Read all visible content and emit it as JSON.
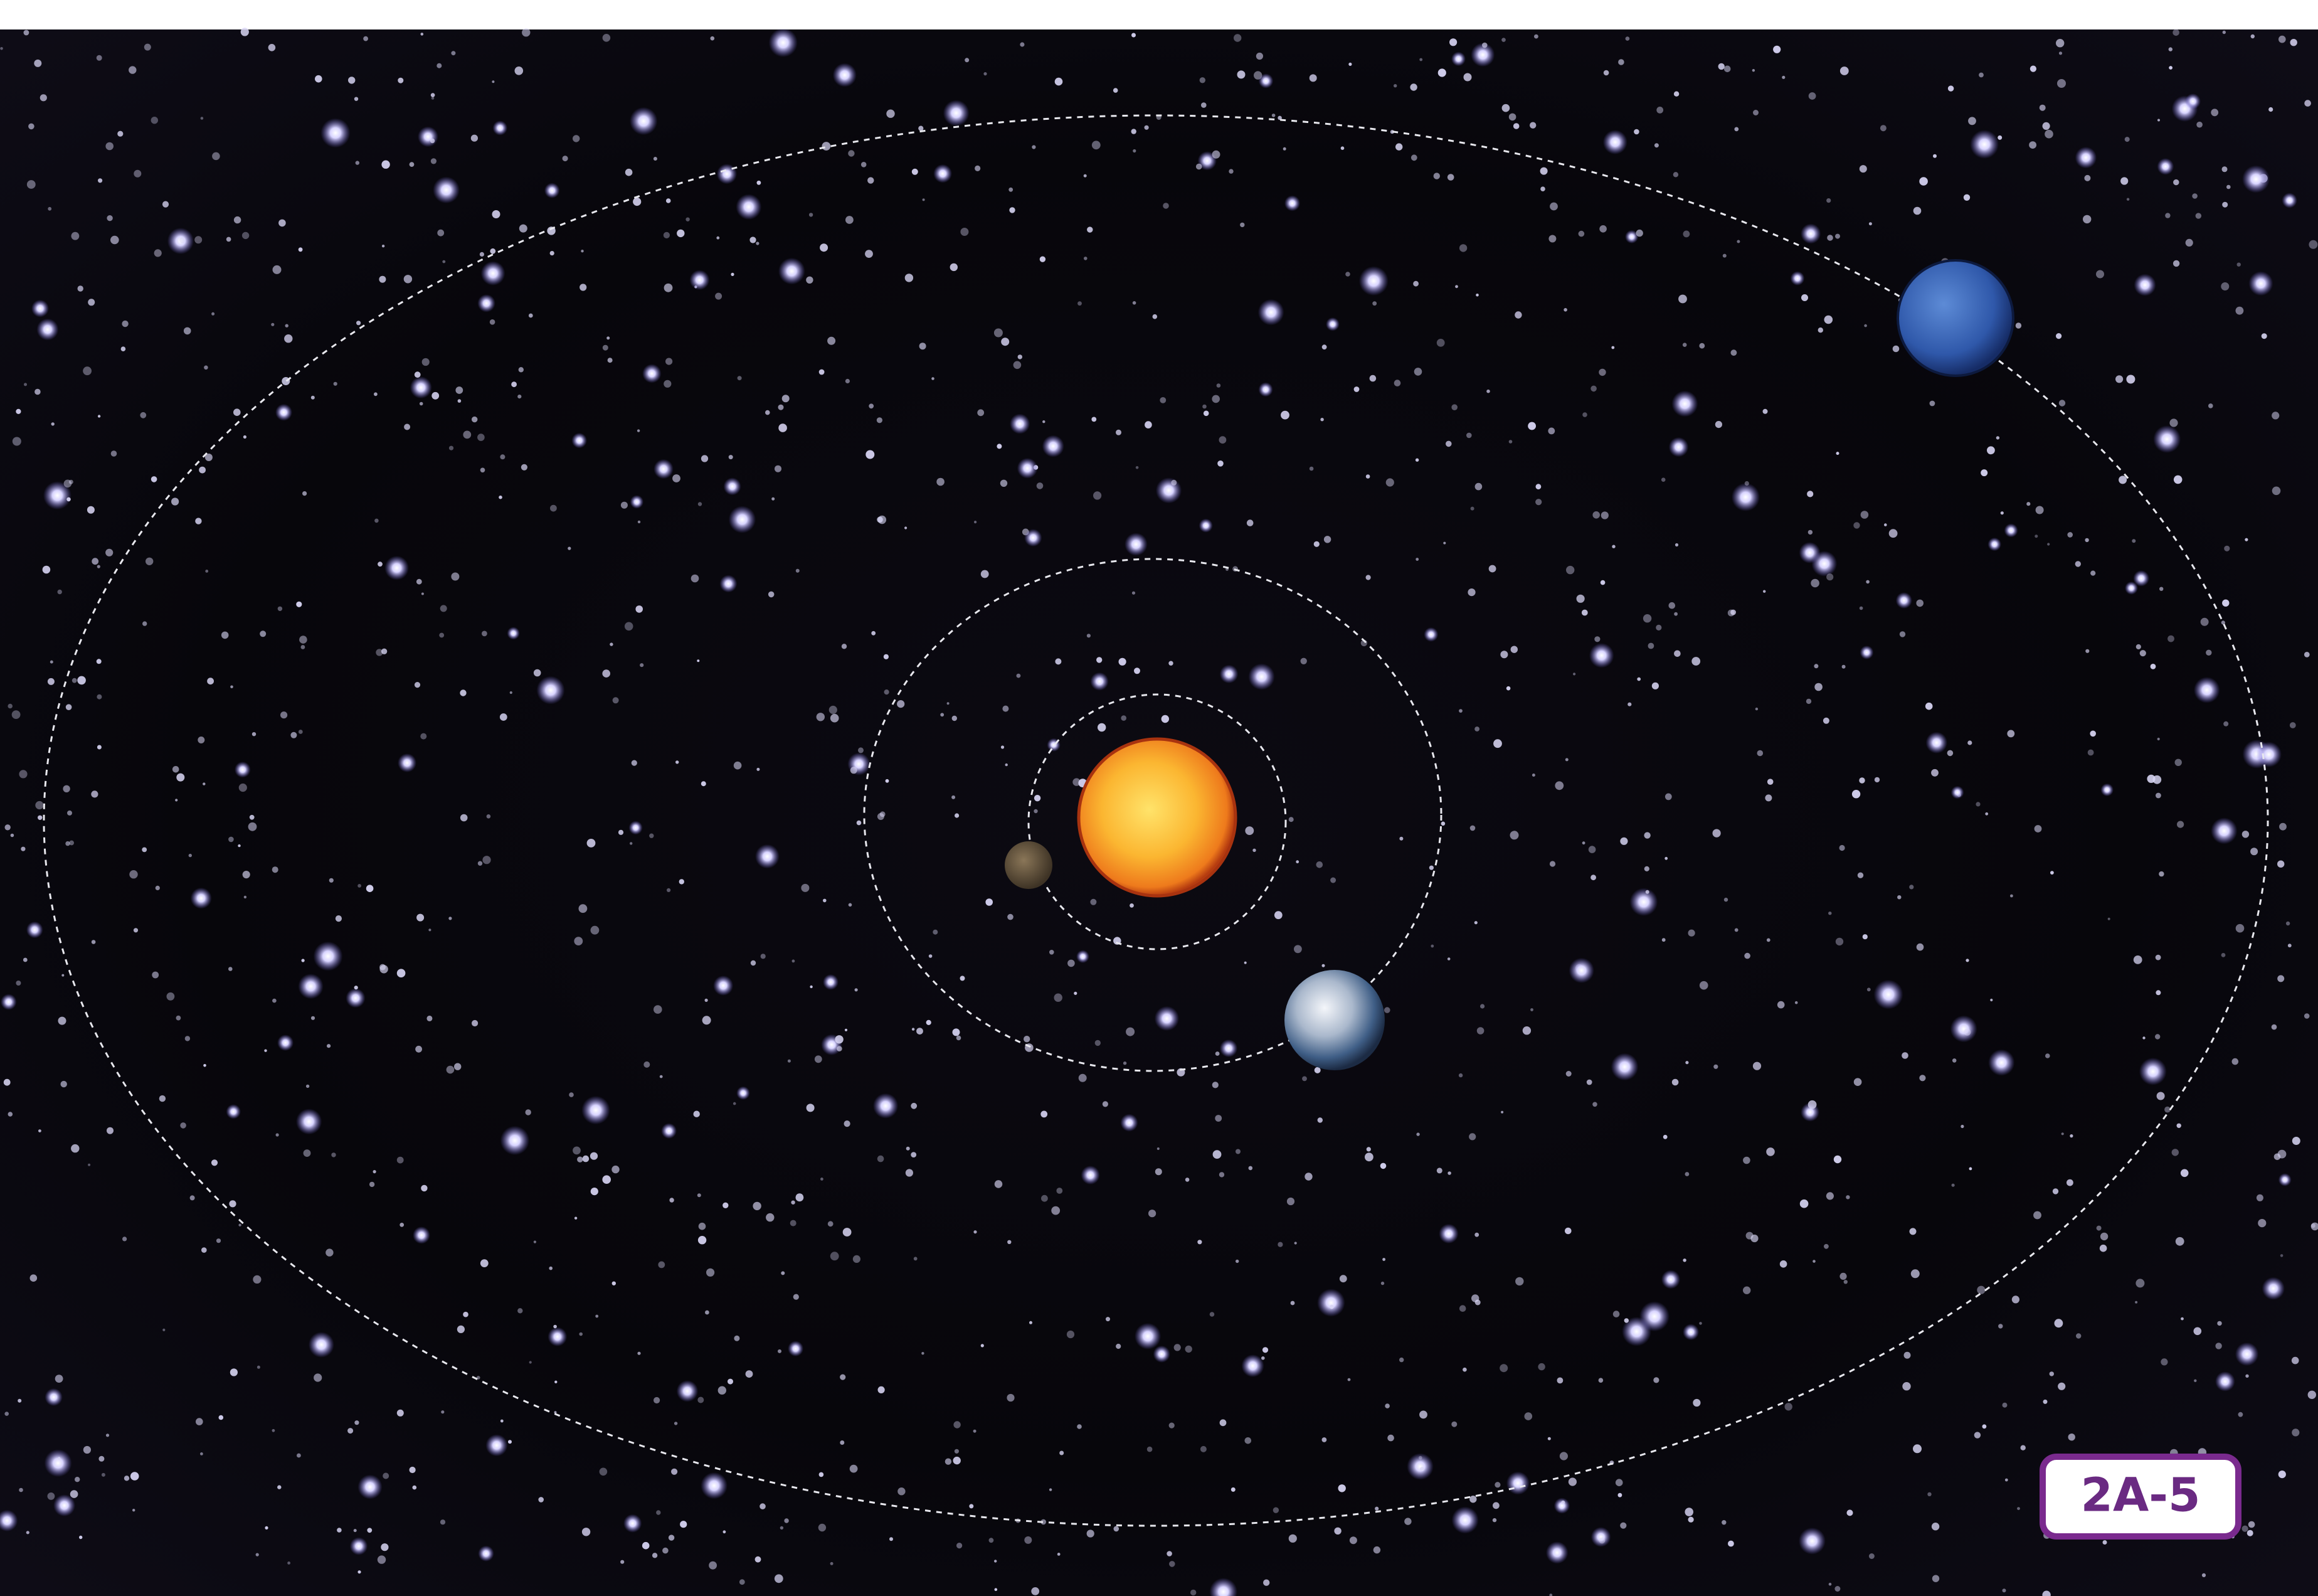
{
  "label": "2A-5"
}
